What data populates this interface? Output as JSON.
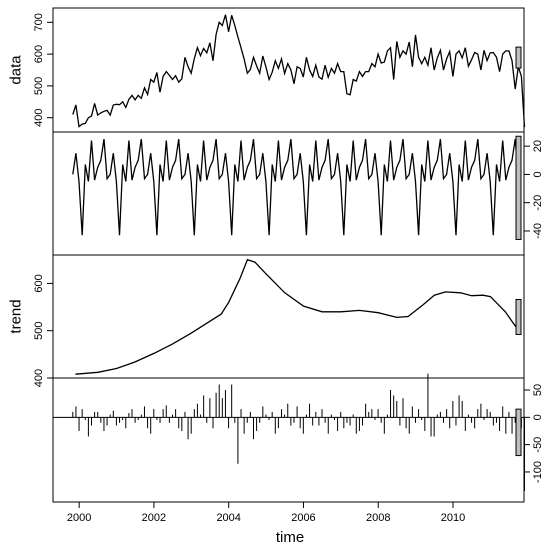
{
  "chart_data": {
    "type": "line",
    "xlabel": "time",
    "x_ticks": [
      "2000",
      "2002",
      "2004",
      "2006",
      "2008",
      "2010"
    ],
    "xlim": [
      1999.3,
      2011.9
    ],
    "panels": [
      {
        "name": "data",
        "style": "line",
        "ylim": [
          355,
          745
        ],
        "yticks": [
          400,
          500,
          600,
          700
        ],
        "values": [
          410,
          440,
          372,
          380,
          382,
          400,
          405,
          445,
          408,
          415,
          420,
          423,
          408,
          440,
          442,
          441,
          450,
          432,
          458,
          470,
          456,
          470,
          461,
          494,
          473,
          520,
          512,
          542,
          480,
          530,
          545,
          533,
          520,
          532,
          512,
          522,
          590,
          560,
          540,
          586,
          620,
          595,
          618,
          604,
          636,
          579,
          662,
          700,
          690,
          724,
          670,
          722,
          690,
          654,
          620,
          585,
          540,
          552,
          590,
          563,
          540,
          594,
          560,
          520,
          543,
          579,
          555,
          585,
          539,
          570,
          550,
          507,
          560,
          555,
          528,
          590,
          550,
          530,
          565,
          528,
          521,
          565,
          527,
          555,
          540,
          570,
          545,
          545,
          475,
          472,
          520,
          515,
          545,
          530,
          545,
          545,
          570,
          560,
          600,
          572,
          575,
          610,
          620,
          520,
          640,
          590,
          610,
          600,
          638,
          560,
          660,
          590,
          570,
          590,
          565,
          620,
          550,
          588,
          612,
          550,
          585,
          608,
          530,
          600,
          610,
          588,
          620,
          562,
          582,
          605,
          600,
          550,
          612,
          580,
          604,
          605,
          590,
          545,
          600,
          610,
          610,
          580,
          490,
          560,
          530,
          370
        ],
        "range_bar": [
          556,
          622
        ]
      },
      {
        "name": "seasonal",
        "style": "line",
        "ylim": [
          -57,
          30
        ],
        "yticks": [
          -40,
          -20,
          0,
          20
        ],
        "pattern": [
          0,
          15,
          -5,
          -43,
          7,
          -5,
          24,
          -4,
          5,
          10,
          25,
          -3
        ],
        "cycles": 12,
        "range_bar": [
          -46,
          27
        ]
      },
      {
        "name": "trend",
        "style": "line",
        "ylim": [
          400,
          660
        ],
        "yticks": [
          400,
          500,
          600
        ],
        "points": [
          [
            1999.9,
            408
          ],
          [
            2000.5,
            412
          ],
          [
            2001.0,
            420
          ],
          [
            2001.5,
            434
          ],
          [
            2002.0,
            452
          ],
          [
            2002.5,
            472
          ],
          [
            2003.0,
            495
          ],
          [
            2003.5,
            520
          ],
          [
            2003.8,
            535
          ],
          [
            2004.0,
            560
          ],
          [
            2004.3,
            610
          ],
          [
            2004.5,
            650
          ],
          [
            2004.7,
            645
          ],
          [
            2005.0,
            620
          ],
          [
            2005.5,
            580
          ],
          [
            2006.0,
            552
          ],
          [
            2006.5,
            540
          ],
          [
            2007.0,
            540
          ],
          [
            2007.5,
            543
          ],
          [
            2008.0,
            538
          ],
          [
            2008.5,
            528
          ],
          [
            2008.8,
            530
          ],
          [
            2009.2,
            555
          ],
          [
            2009.5,
            575
          ],
          [
            2009.8,
            582
          ],
          [
            2010.2,
            580
          ],
          [
            2010.5,
            574
          ],
          [
            2010.8,
            575
          ],
          [
            2011.0,
            572
          ],
          [
            2011.4,
            540
          ],
          [
            2011.8,
            495
          ]
        ],
        "range_bar": [
          492,
          566
        ]
      },
      {
        "name": "remainder",
        "style": "bars",
        "ylim": [
          -155,
          72
        ],
        "yticks": [
          -100,
          -50,
          0,
          50
        ],
        "values": [
          10,
          20,
          -25,
          15,
          -5,
          -35,
          -15,
          10,
          10,
          -10,
          -25,
          -15,
          5,
          12,
          -15,
          -10,
          -5,
          -20,
          8,
          15,
          -10,
          -5,
          5,
          20,
          -20,
          -30,
          15,
          -5,
          -10,
          15,
          22,
          -10,
          5,
          15,
          -20,
          -25,
          10,
          -40,
          -30,
          15,
          25,
          5,
          40,
          -10,
          35,
          -20,
          45,
          60,
          35,
          50,
          -20,
          60,
          -10,
          -85,
          15,
          -30,
          -10,
          10,
          -40,
          -25,
          -10,
          20,
          5,
          -5,
          10,
          -30,
          -20,
          15,
          5,
          25,
          -15,
          -10,
          20,
          -20,
          -30,
          5,
          25,
          -15,
          10,
          -15,
          15,
          -10,
          -30,
          5,
          -5,
          -25,
          10,
          -20,
          -10,
          -15,
          5,
          -30,
          -25,
          -15,
          25,
          10,
          15,
          -5,
          15,
          -10,
          -30,
          5,
          50,
          40,
          30,
          -15,
          35,
          -20,
          -30,
          20,
          -10,
          15,
          -5,
          -25,
          80,
          -35,
          -35,
          5,
          10,
          -10,
          15,
          -20,
          30,
          -15,
          40,
          30,
          -25,
          5,
          -10,
          -20,
          15,
          25,
          -5,
          15,
          10,
          -15,
          -10,
          -25,
          20,
          -30,
          10,
          -30,
          -10,
          15,
          -20,
          -135
        ],
        "range_bar": [
          -70,
          15
        ]
      }
    ]
  }
}
